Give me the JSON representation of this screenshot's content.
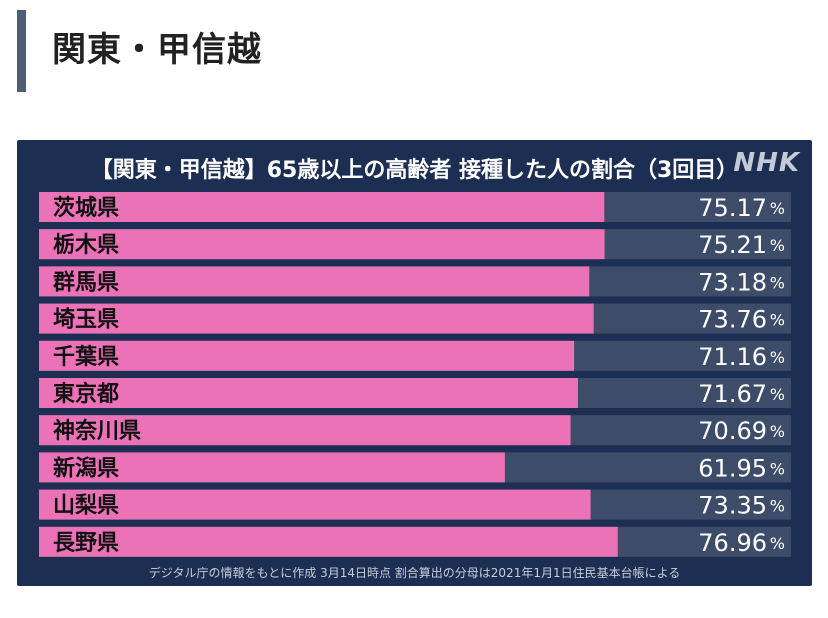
{
  "heading": "関東・甲信越",
  "logo_text": "NHK",
  "footnote": "デジタル庁の情報をもとに作成 3月14日時点 割合算出の分母は2021年1月1日住民基本台帳による",
  "colors": {
    "bar": "#ec72b8",
    "track": "#3d4c68",
    "panel": "#1c2e52",
    "text": "#ffffff"
  },
  "chart_data": {
    "type": "bar",
    "orientation": "horizontal",
    "title": "【関東・甲信越】65歳以上の高齢者 接種した人の割合（3回目）",
    "categories": [
      "茨城県",
      "栃木県",
      "群馬県",
      "埼玉県",
      "千葉県",
      "東京都",
      "神奈川県",
      "新潟県",
      "山梨県",
      "長野県"
    ],
    "values": [
      75.17,
      75.21,
      73.18,
      73.76,
      71.16,
      71.67,
      70.69,
      61.95,
      73.35,
      76.96
    ],
    "labels": [
      "75.17",
      "75.21",
      "73.18",
      "73.76",
      "71.16",
      "71.67",
      "70.69",
      "61.95",
      "73.35",
      "76.96"
    ],
    "unit": "%",
    "xlim": [
      0,
      100
    ],
    "grid": false,
    "legend": "none"
  }
}
